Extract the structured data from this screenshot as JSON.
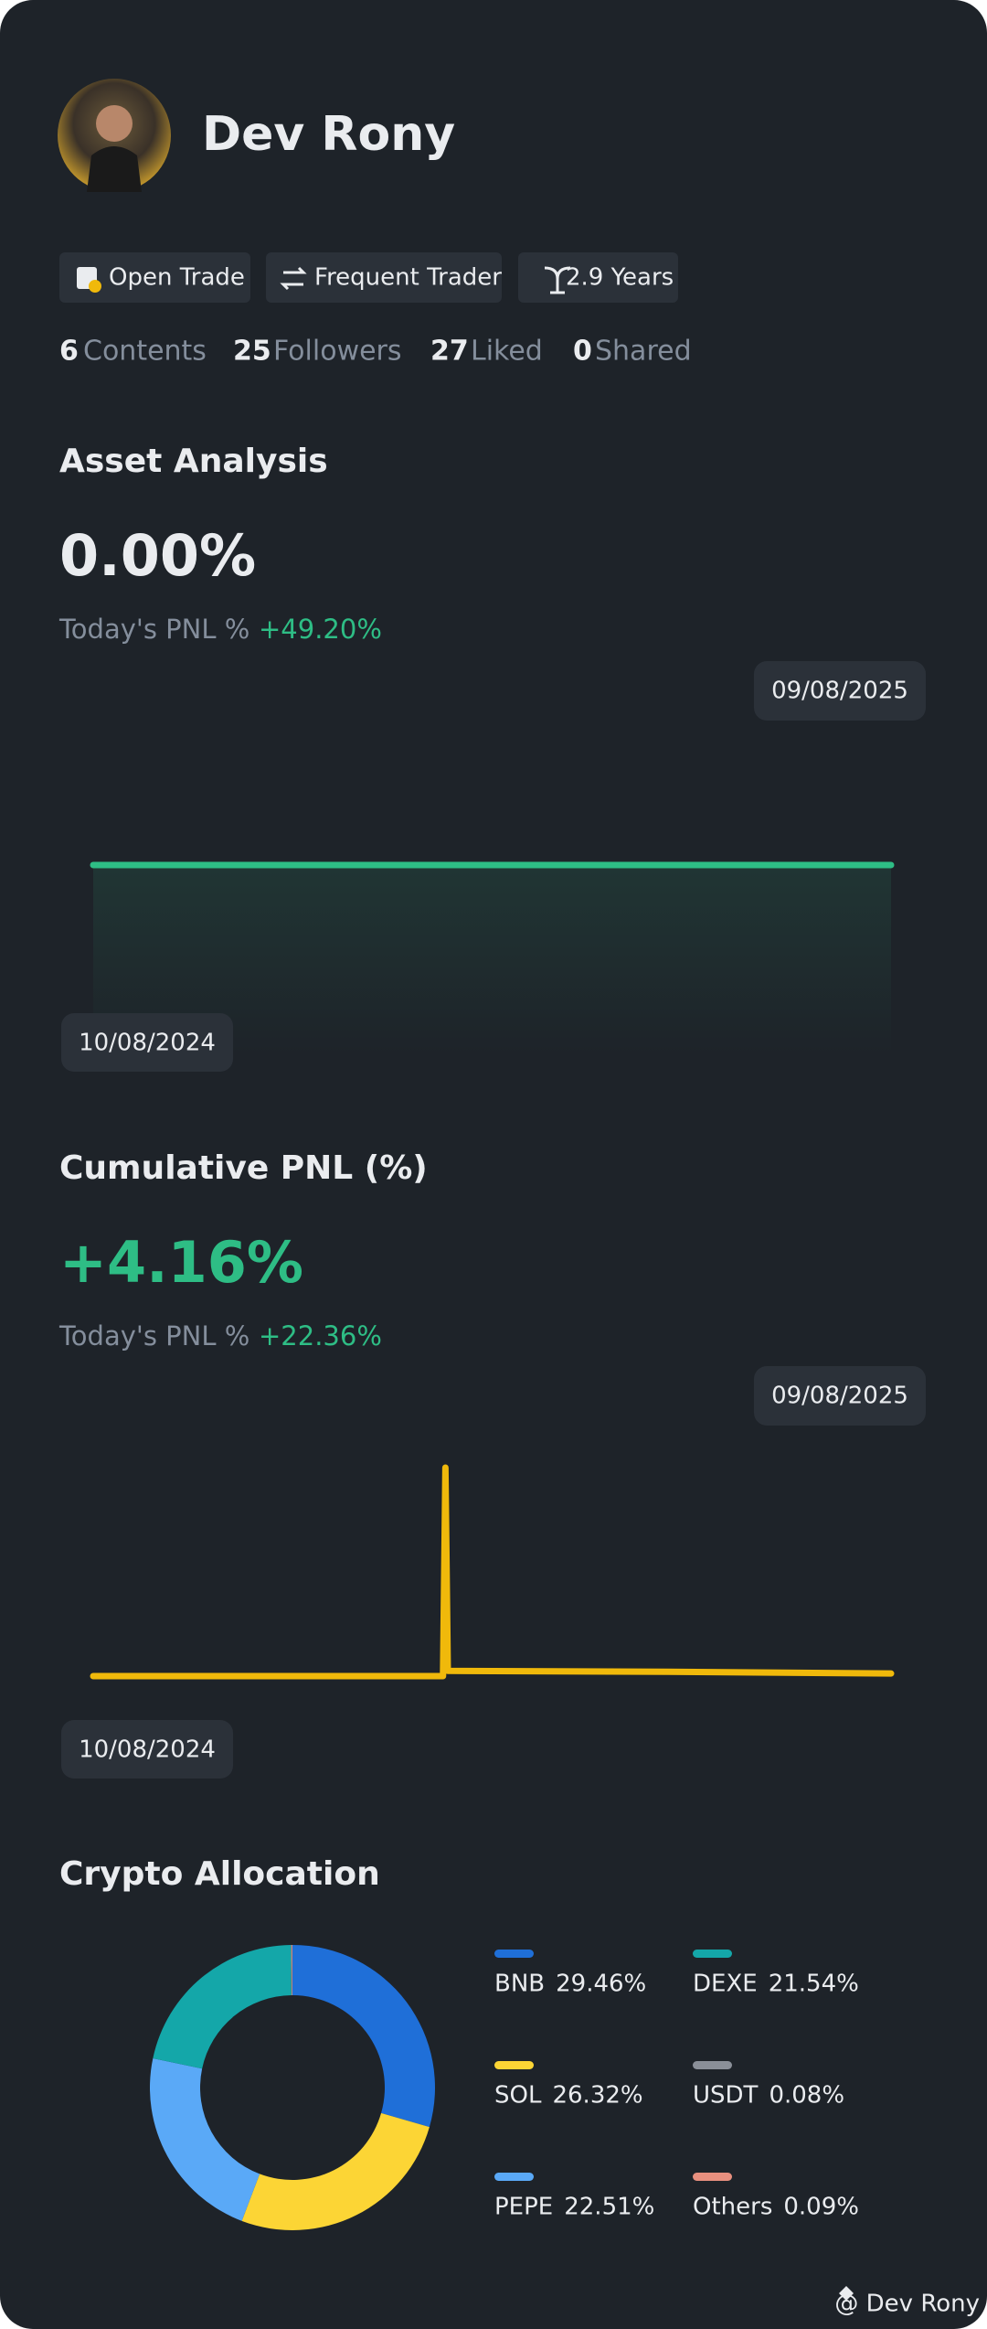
{
  "profile": {
    "name": "Dev Rony",
    "tags": [
      "Open Trade",
      "Frequent Trader",
      "2.9 Years"
    ],
    "stats": [
      {
        "value": 6,
        "label": "Contents"
      },
      {
        "value": 25,
        "label": "Followers"
      },
      {
        "value": 27,
        "label": "Liked"
      },
      {
        "value": 0,
        "label": "Shared"
      }
    ]
  },
  "asset_analysis": {
    "title": "Asset Analysis",
    "value": "0.00%",
    "pnl_label": "Today's PNL %",
    "pnl_value": "+49.20%",
    "chart": {
      "type": "line",
      "x": [
        0,
        333
      ],
      "values": [
        0,
        0
      ],
      "xlim": [
        0,
        333
      ],
      "ylim": [
        -1,
        1
      ],
      "color": "#2ebd85",
      "area": true,
      "start_label": "10/08/2024",
      "end_label": "09/08/2025"
    }
  },
  "cumulative_pnl": {
    "title": "Cumulative PNL (%)",
    "value": "+4.16%",
    "pnl_label": "Today's PNL %",
    "pnl_value": "+22.36%",
    "chart": {
      "type": "line",
      "x": [
        0,
        146,
        147,
        148,
        240,
        333
      ],
      "values": [
        0,
        0,
        24,
        0.6,
        0.5,
        0.3
      ],
      "xlim": [
        0,
        333
      ],
      "ylim": [
        -10,
        34
      ],
      "color": "#f0b90b",
      "area": false,
      "start_label": "10/08/2024",
      "end_label": "09/08/2025"
    }
  },
  "crypto_allocation": {
    "title": "Crypto Allocation",
    "chart": {
      "type": "donut",
      "categories": [
        "BNB",
        "SOL",
        "PEPE",
        "DEXE",
        "USDT",
        "Others"
      ],
      "values": [
        29.46,
        26.32,
        22.51,
        21.54,
        0.08,
        0.09
      ],
      "value_labels": [
        "29.46%",
        "26.32%",
        "22.51%",
        "21.54%",
        "0.08%",
        "0.09%"
      ],
      "colors": [
        "#1f6fd8",
        "#fcd535",
        "#5aa9f7",
        "#14a7a9",
        "#8a8f98",
        "#e8907f"
      ]
    }
  },
  "watermark": "@ Dev Rony"
}
